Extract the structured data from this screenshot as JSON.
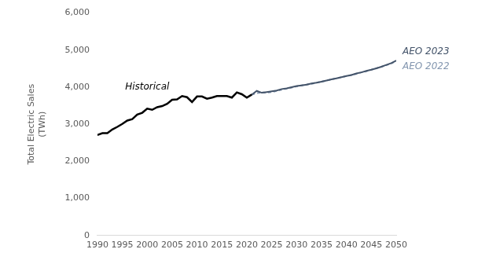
{
  "chart_data": {
    "type": "line",
    "ylabel": [
      "Total Electric Sales",
      "(TWh)"
    ],
    "x": [
      1990,
      1991,
      1992,
      1993,
      1994,
      1995,
      1996,
      1997,
      1998,
      1999,
      2000,
      2001,
      2002,
      2003,
      2004,
      2005,
      2006,
      2007,
      2008,
      2009,
      2010,
      2011,
      2012,
      2013,
      2014,
      2015,
      2016,
      2017,
      2018,
      2019,
      2020,
      2021,
      2022,
      2023,
      2024,
      2025,
      2026,
      2027,
      2028,
      2029,
      2030,
      2031,
      2032,
      2033,
      2034,
      2035,
      2036,
      2037,
      2038,
      2039,
      2040,
      2041,
      2042,
      2043,
      2044,
      2045,
      2046,
      2047,
      2048,
      2049,
      2050
    ],
    "series": [
      {
        "name": "Historical",
        "color": "#000000",
        "line_style": "solid",
        "values": [
          2710,
          2760,
          2760,
          2860,
          2930,
          3010,
          3100,
          3140,
          3260,
          3310,
          3420,
          3390,
          3460,
          3490,
          3550,
          3660,
          3670,
          3760,
          3730,
          3600,
          3750,
          3750,
          3690,
          3720,
          3760,
          3760,
          3760,
          3720,
          3860,
          3810,
          3720,
          3800,
          null,
          null,
          null,
          null,
          null,
          null,
          null,
          null,
          null,
          null,
          null,
          null,
          null,
          null,
          null,
          null,
          null,
          null,
          null,
          null,
          null,
          null,
          null,
          null,
          null,
          null,
          null,
          null,
          null
        ]
      },
      {
        "name": "AEO 2023",
        "color": "#44546a",
        "line_style": "solid",
        "values": [
          null,
          null,
          null,
          null,
          null,
          null,
          null,
          null,
          null,
          null,
          null,
          null,
          null,
          null,
          null,
          null,
          null,
          null,
          null,
          null,
          null,
          null,
          null,
          null,
          null,
          null,
          null,
          null,
          null,
          null,
          null,
          3800,
          3900,
          3850,
          3870,
          3890,
          3910,
          3950,
          3970,
          4000,
          4030,
          4050,
          4070,
          4100,
          4120,
          4150,
          4180,
          4210,
          4240,
          4270,
          4300,
          4330,
          4370,
          4400,
          4440,
          4470,
          4510,
          4550,
          4600,
          4650,
          4720
        ]
      },
      {
        "name": "AEO 2022",
        "color": "#8497b0",
        "line_style": "dashed",
        "values": [
          null,
          null,
          null,
          null,
          null,
          null,
          null,
          null,
          null,
          null,
          null,
          null,
          null,
          null,
          null,
          null,
          null,
          null,
          null,
          null,
          null,
          null,
          null,
          null,
          null,
          null,
          null,
          null,
          null,
          null,
          null,
          3800,
          3840,
          3860,
          3850,
          3870,
          3900,
          3930,
          3960,
          3990,
          4020,
          4050,
          4070,
          4090,
          4120,
          4150,
          4180,
          4210,
          4240,
          4270,
          4300,
          4330,
          4360,
          4400,
          4430,
          4470,
          4510,
          4550,
          4590,
          4640,
          4710
        ]
      }
    ],
    "xlim": [
      1990,
      2050
    ],
    "xticks": [
      1990,
      1995,
      2000,
      2005,
      2010,
      2015,
      2020,
      2025,
      2030,
      2035,
      2040,
      2045,
      2050
    ],
    "ylim": [
      0,
      6000
    ],
    "yticks": [
      0,
      {
        "value": 1000,
        "label": "1,000"
      },
      {
        "value": 2000,
        "label": "2,000"
      },
      {
        "value": 3000,
        "label": "3,000"
      },
      {
        "value": 4000,
        "label": "4,000"
      },
      {
        "value": 5000,
        "label": "5,000"
      },
      {
        "value": 6000,
        "label": "6,000"
      }
    ],
    "grid": false
  }
}
